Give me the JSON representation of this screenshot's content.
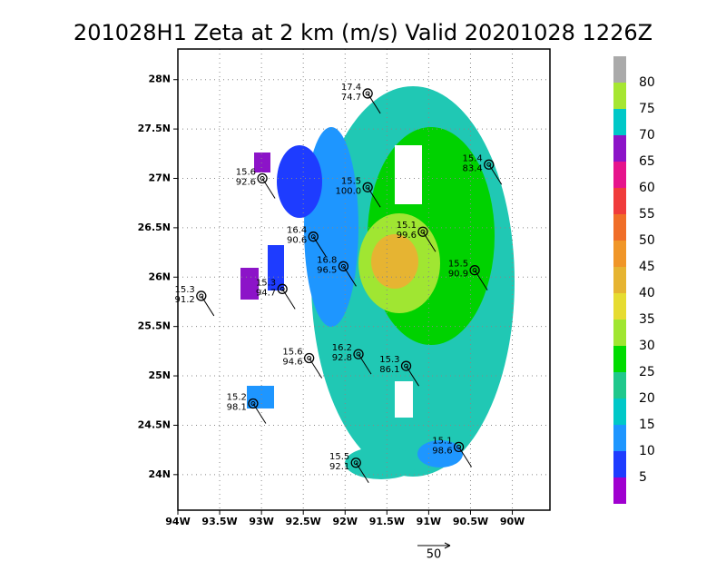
{
  "title": "201028H1 Zeta at 2 km (m/s) Valid 20201028 1226Z",
  "map": {
    "lonlim": [
      -94,
      -89.55
    ],
    "latlim": [
      23.64,
      28.31
    ],
    "lonticks": [
      {
        "value": -94,
        "label": "94W"
      },
      {
        "value": -93.5,
        "label": "93.5W"
      },
      {
        "value": -93,
        "label": "93W"
      },
      {
        "value": -92.5,
        "label": "92.5W"
      },
      {
        "value": -92,
        "label": "92W"
      },
      {
        "value": -91.5,
        "label": "91.5W"
      },
      {
        "value": -91,
        "label": "91W"
      },
      {
        "value": -90.5,
        "label": "90.5W"
      },
      {
        "value": -90,
        "label": "90W"
      }
    ],
    "latticks": [
      {
        "value": 24,
        "label": "24N"
      },
      {
        "value": 24.5,
        "label": "24.5N"
      },
      {
        "value": 25,
        "label": "25N"
      },
      {
        "value": 25.5,
        "label": "25.5N"
      },
      {
        "value": 26,
        "label": "26N"
      },
      {
        "value": 26.5,
        "label": "26.5N"
      },
      {
        "value": 27,
        "label": "27N"
      },
      {
        "value": 27.5,
        "label": "27.5N"
      },
      {
        "value": 28,
        "label": "28N"
      }
    ],
    "grid": true,
    "stations": [
      {
        "lon": -91.73,
        "lat": 27.86,
        "top": "17.4",
        "bottom": "74.7"
      },
      {
        "lon": -92.99,
        "lat": 27.0,
        "top": "15.6",
        "bottom": "92.6"
      },
      {
        "lon": -91.73,
        "lat": 26.91,
        "top": "15.5",
        "bottom": "100.0"
      },
      {
        "lon": -90.28,
        "lat": 27.14,
        "top": "15.4",
        "bottom": "83.4"
      },
      {
        "lon": -91.07,
        "lat": 26.46,
        "top": "15.1",
        "bottom": "99.6"
      },
      {
        "lon": -92.38,
        "lat": 26.41,
        "top": "16.4",
        "bottom": "90.6"
      },
      {
        "lon": -93.72,
        "lat": 25.81,
        "top": "15.3",
        "bottom": "91.2"
      },
      {
        "lon": -92.75,
        "lat": 25.88,
        "top": "15.3",
        "bottom": "94.7"
      },
      {
        "lon": -90.45,
        "lat": 26.07,
        "top": "15.5",
        "bottom": "90.9"
      },
      {
        "lon": -92.02,
        "lat": 26.11,
        "top": "16.8",
        "bottom": "96.5"
      },
      {
        "lon": -92.43,
        "lat": 25.18,
        "top": "15.6",
        "bottom": "94.6"
      },
      {
        "lon": -91.84,
        "lat": 25.22,
        "top": "16.2",
        "bottom": "92.8"
      },
      {
        "lon": -91.27,
        "lat": 25.1,
        "top": "15.3",
        "bottom": "86.1"
      },
      {
        "lon": -93.1,
        "lat": 24.72,
        "top": "15.2",
        "bottom": "98.1"
      },
      {
        "lon": -90.64,
        "lat": 24.28,
        "top": "15.1",
        "bottom": "98.6"
      },
      {
        "lon": -91.87,
        "lat": 24.12,
        "top": "15.5",
        "bottom": "92.1"
      }
    ]
  },
  "colorbar": {
    "labels": [
      80,
      75,
      70,
      65,
      60,
      55,
      50,
      45,
      40,
      35,
      30,
      25,
      20,
      15,
      10,
      5
    ],
    "colors": [
      "#aaaaaa",
      "#a6e632",
      "#00c8c8",
      "#8c14c8",
      "#e6148c",
      "#f03c3c",
      "#f06e28",
      "#f09628",
      "#e6b432",
      "#e6dc32",
      "#a0e632",
      "#00dc00",
      "#20c88c",
      "#00c8c8",
      "#1e96ff",
      "#1e3cff",
      "#a000d0"
    ]
  },
  "reference_vector": "50"
}
